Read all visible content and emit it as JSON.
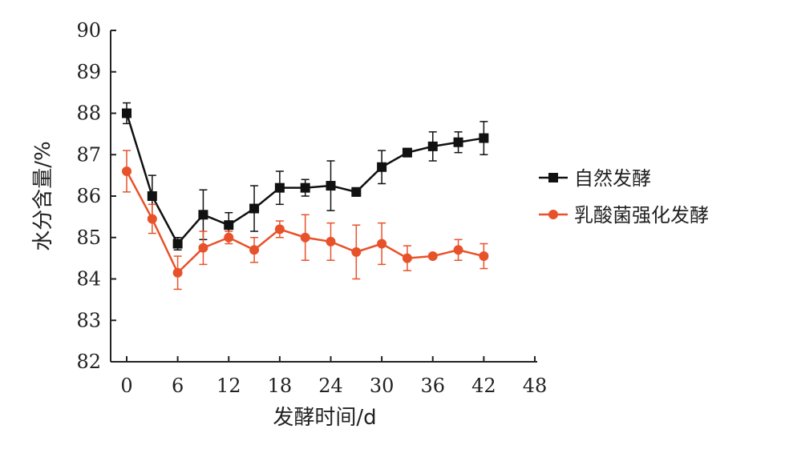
{
  "chart_data": {
    "type": "line",
    "xlabel": "发酵时间/d",
    "ylabel": "水分含量/%",
    "xlim": [
      0,
      48
    ],
    "ylim": [
      82,
      90
    ],
    "xticks": [
      "0",
      "6",
      "12",
      "18",
      "24",
      "30",
      "36",
      "42",
      "48"
    ],
    "yticks": [
      "82",
      "83",
      "84",
      "85",
      "86",
      "87",
      "88",
      "89",
      "90"
    ],
    "x": [
      0,
      3,
      6,
      9,
      12,
      15,
      18,
      21,
      24,
      27,
      30,
      33,
      36,
      39,
      42
    ],
    "legend_position": "right",
    "series": [
      {
        "name": "自然发酵",
        "color": "#111111",
        "marker": "square",
        "values": [
          88.0,
          86.0,
          84.85,
          85.55,
          85.3,
          85.7,
          86.2,
          86.2,
          86.25,
          86.1,
          86.7,
          87.05,
          87.2,
          87.3,
          87.4
        ],
        "errors": [
          0.25,
          0.5,
          0.15,
          0.6,
          0.3,
          0.55,
          0.4,
          0.2,
          0.6,
          0.1,
          0.4,
          0.1,
          0.35,
          0.25,
          0.4
        ]
      },
      {
        "name": "乳酸菌强化发酵",
        "color": "#e8522a",
        "marker": "circle",
        "values": [
          86.6,
          85.45,
          84.15,
          84.75,
          85.0,
          84.7,
          85.2,
          85.0,
          84.9,
          84.65,
          84.85,
          84.5,
          84.55,
          84.7,
          84.55
        ],
        "errors": [
          0.5,
          0.35,
          0.4,
          0.4,
          0.15,
          0.3,
          0.2,
          0.55,
          0.45,
          0.65,
          0.5,
          0.3,
          0.05,
          0.25,
          0.3
        ]
      }
    ]
  }
}
